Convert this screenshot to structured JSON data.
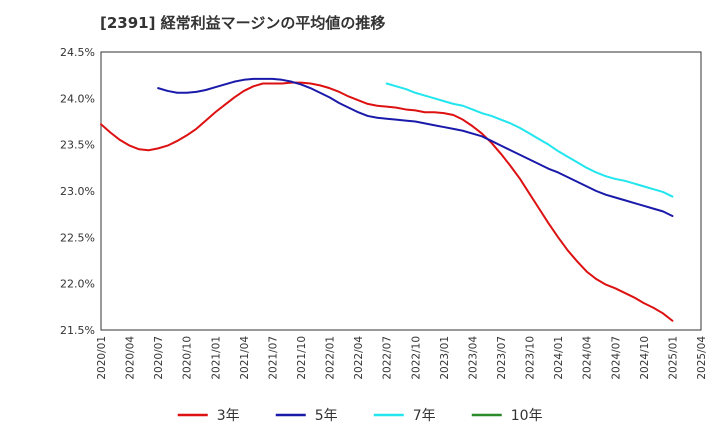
{
  "chart_data": {
    "type": "line",
    "title": "[2391]  経常利益マージンの平均値の推移",
    "xlabel": "",
    "ylabel": "",
    "x": [
      "2020/01",
      "2020/04",
      "2020/07",
      "2020/10",
      "2021/01",
      "2021/04",
      "2021/07",
      "2021/10",
      "2022/01",
      "2022/04",
      "2022/07",
      "2022/10",
      "2023/01",
      "2023/04",
      "2023/07",
      "2023/10",
      "2024/01",
      "2024/04",
      "2024/07",
      "2024/10",
      "2025/01",
      "2025/04"
    ],
    "y_ticks": [
      "24.5%",
      "24.0%",
      "23.5%",
      "23.0%",
      "22.5%",
      "22.0%",
      "21.5%"
    ],
    "ylim": [
      21.5,
      24.5
    ],
    "grid": true,
    "legend_position": "bottom",
    "series": [
      {
        "name": "3年",
        "color": "#dd1111",
        "points": [
          [
            "2020/01",
            23.72
          ],
          [
            "2020/02",
            23.63
          ],
          [
            "2020/03",
            23.55
          ],
          [
            "2020/04",
            23.49
          ],
          [
            "2020/05",
            23.45
          ],
          [
            "2020/06",
            23.44
          ],
          [
            "2020/07",
            23.46
          ],
          [
            "2020/08",
            23.49
          ],
          [
            "2020/09",
            23.54
          ],
          [
            "2020/10",
            23.6
          ],
          [
            "2020/11",
            23.67
          ],
          [
            "2020/12",
            23.76
          ],
          [
            "2021/01",
            23.85
          ],
          [
            "2021/02",
            23.93
          ],
          [
            "2021/03",
            24.01
          ],
          [
            "2021/04",
            24.08
          ],
          [
            "2021/05",
            24.13
          ],
          [
            "2021/06",
            24.16
          ],
          [
            "2021/07",
            24.16
          ],
          [
            "2021/08",
            24.16
          ],
          [
            "2021/09",
            24.17
          ],
          [
            "2021/10",
            24.17
          ],
          [
            "2021/11",
            24.16
          ],
          [
            "2021/12",
            24.14
          ],
          [
            "2022/01",
            24.11
          ],
          [
            "2022/02",
            24.07
          ],
          [
            "2022/03",
            24.02
          ],
          [
            "2022/04",
            23.98
          ],
          [
            "2022/05",
            23.94
          ],
          [
            "2022/06",
            23.92
          ],
          [
            "2022/07",
            23.91
          ],
          [
            "2022/08",
            23.9
          ],
          [
            "2022/09",
            23.88
          ],
          [
            "2022/10",
            23.87
          ],
          [
            "2022/11",
            23.85
          ],
          [
            "2022/12",
            23.85
          ],
          [
            "2023/01",
            23.84
          ],
          [
            "2023/02",
            23.82
          ],
          [
            "2023/03",
            23.77
          ],
          [
            "2023/04",
            23.7
          ],
          [
            "2023/05",
            23.62
          ],
          [
            "2023/06",
            23.52
          ],
          [
            "2023/07",
            23.4
          ],
          [
            "2023/08",
            23.27
          ],
          [
            "2023/09",
            23.13
          ],
          [
            "2023/10",
            22.97
          ],
          [
            "2023/11",
            22.81
          ],
          [
            "2023/12",
            22.65
          ],
          [
            "2024/01",
            22.5
          ],
          [
            "2024/02",
            22.36
          ],
          [
            "2024/03",
            22.24
          ],
          [
            "2024/04",
            22.13
          ],
          [
            "2024/05",
            22.05
          ],
          [
            "2024/06",
            21.99
          ],
          [
            "2024/07",
            21.95
          ],
          [
            "2024/08",
            21.9
          ],
          [
            "2024/09",
            21.85
          ],
          [
            "2024/10",
            21.79
          ],
          [
            "2024/11",
            21.74
          ],
          [
            "2024/12",
            21.68
          ],
          [
            "2025/01",
            21.6
          ]
        ]
      },
      {
        "name": "5年",
        "color": "#1a1aaa",
        "points": [
          [
            "2020/07",
            24.11
          ],
          [
            "2020/08",
            24.08
          ],
          [
            "2020/09",
            24.06
          ],
          [
            "2020/10",
            24.06
          ],
          [
            "2020/11",
            24.07
          ],
          [
            "2020/12",
            24.09
          ],
          [
            "2021/01",
            24.12
          ],
          [
            "2021/02",
            24.15
          ],
          [
            "2021/03",
            24.18
          ],
          [
            "2021/04",
            24.2
          ],
          [
            "2021/05",
            24.21
          ],
          [
            "2021/06",
            24.21
          ],
          [
            "2021/07",
            24.21
          ],
          [
            "2021/08",
            24.2
          ],
          [
            "2021/09",
            24.18
          ],
          [
            "2021/10",
            24.15
          ],
          [
            "2021/11",
            24.11
          ],
          [
            "2021/12",
            24.06
          ],
          [
            "2022/01",
            24.01
          ],
          [
            "2022/02",
            23.95
          ],
          [
            "2022/03",
            23.9
          ],
          [
            "2022/04",
            23.85
          ],
          [
            "2022/05",
            23.81
          ],
          [
            "2022/06",
            23.79
          ],
          [
            "2022/07",
            23.78
          ],
          [
            "2022/08",
            23.77
          ],
          [
            "2022/09",
            23.76
          ],
          [
            "2022/10",
            23.75
          ],
          [
            "2022/11",
            23.73
          ],
          [
            "2022/12",
            23.71
          ],
          [
            "2023/01",
            23.69
          ],
          [
            "2023/02",
            23.67
          ],
          [
            "2023/03",
            23.65
          ],
          [
            "2023/04",
            23.62
          ],
          [
            "2023/05",
            23.59
          ],
          [
            "2023/06",
            23.54
          ],
          [
            "2023/07",
            23.49
          ],
          [
            "2023/08",
            23.44
          ],
          [
            "2023/09",
            23.39
          ],
          [
            "2023/10",
            23.34
          ],
          [
            "2023/11",
            23.29
          ],
          [
            "2023/12",
            23.24
          ],
          [
            "2024/01",
            23.2
          ],
          [
            "2024/02",
            23.15
          ],
          [
            "2024/03",
            23.1
          ],
          [
            "2024/04",
            23.05
          ],
          [
            "2024/05",
            23.0
          ],
          [
            "2024/06",
            22.96
          ],
          [
            "2024/07",
            22.93
          ],
          [
            "2024/08",
            22.9
          ],
          [
            "2024/09",
            22.87
          ],
          [
            "2024/10",
            22.84
          ],
          [
            "2024/11",
            22.81
          ],
          [
            "2024/12",
            22.78
          ],
          [
            "2025/01",
            22.73
          ]
        ]
      },
      {
        "name": "7年",
        "color": "#22e5ee",
        "points": [
          [
            "2022/07",
            24.16
          ],
          [
            "2022/08",
            24.13
          ],
          [
            "2022/09",
            24.1
          ],
          [
            "2022/10",
            24.06
          ],
          [
            "2022/11",
            24.03
          ],
          [
            "2022/12",
            24.0
          ],
          [
            "2023/01",
            23.97
          ],
          [
            "2023/02",
            23.94
          ],
          [
            "2023/03",
            23.92
          ],
          [
            "2023/04",
            23.88
          ],
          [
            "2023/05",
            23.84
          ],
          [
            "2023/06",
            23.81
          ],
          [
            "2023/07",
            23.77
          ],
          [
            "2023/08",
            23.73
          ],
          [
            "2023/09",
            23.68
          ],
          [
            "2023/10",
            23.62
          ],
          [
            "2023/11",
            23.56
          ],
          [
            "2023/12",
            23.5
          ],
          [
            "2024/01",
            23.43
          ],
          [
            "2024/02",
            23.37
          ],
          [
            "2024/03",
            23.31
          ],
          [
            "2024/04",
            23.25
          ],
          [
            "2024/05",
            23.2
          ],
          [
            "2024/06",
            23.16
          ],
          [
            "2024/07",
            23.13
          ],
          [
            "2024/08",
            23.11
          ],
          [
            "2024/09",
            23.08
          ],
          [
            "2024/10",
            23.05
          ],
          [
            "2024/11",
            23.02
          ],
          [
            "2024/12",
            22.99
          ],
          [
            "2025/01",
            22.94
          ]
        ]
      },
      {
        "name": "10年",
        "color": "#2a8a2a",
        "points": []
      }
    ]
  }
}
